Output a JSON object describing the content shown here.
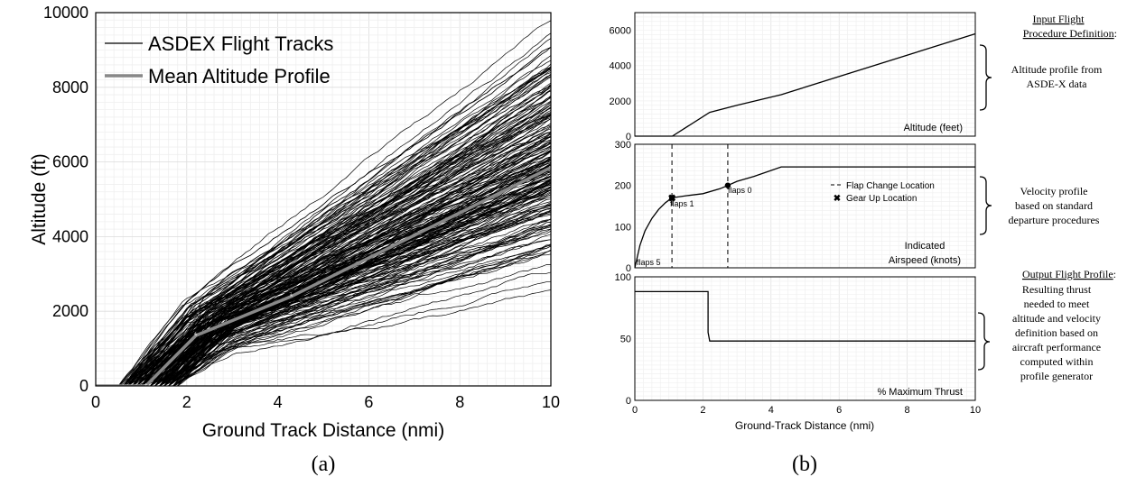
{
  "panel_labels": {
    "a": "(a)",
    "b": "(b)"
  },
  "chart_data": [
    {
      "type": "line",
      "xlabel": "Ground Track Distance (nmi)",
      "ylabel": "Altitude (ft)",
      "xlim": [
        0,
        10
      ],
      "ylim": [
        0,
        10000
      ],
      "xticks": [
        "0",
        "2",
        "4",
        "6",
        "8",
        "10"
      ],
      "yticks": [
        "0",
        "2000",
        "4000",
        "6000",
        "8000",
        "10000"
      ],
      "grid": true,
      "legend_position": "top-left",
      "series": [
        {
          "name": "ASDEX Flight Tracks",
          "color": "#000000",
          "description_values": {
            "track_count_drawn": 220,
            "spread_at_10nmi": [
              3000,
              10000
            ]
          }
        },
        {
          "name": "Mean Altitude Profile",
          "color": "#888888",
          "x": [
            0,
            1.1,
            2.2,
            4.3,
            10
          ],
          "y": [
            0,
            0,
            1350,
            2400,
            5850
          ]
        }
      ]
    },
    {
      "type": "line",
      "panel": "top",
      "label": "Altitude (feet)",
      "xlim": [
        0,
        10
      ],
      "ylim": [
        0,
        7000
      ],
      "yticks": [
        "0",
        "2000",
        "4000",
        "6000"
      ],
      "grid": true,
      "series": [
        {
          "x": [
            0,
            1.1,
            2.2,
            3.0,
            4.3,
            10
          ],
          "y": [
            0,
            0,
            1350,
            1750,
            2350,
            5800
          ]
        }
      ]
    },
    {
      "type": "line",
      "panel": "middle",
      "label_line1": "Indicated",
      "label_line2": "Airspeed (knots)",
      "xlim": [
        0,
        10
      ],
      "ylim": [
        0,
        300
      ],
      "yticks": [
        "0",
        "100",
        "200",
        "300"
      ],
      "grid": true,
      "series": [
        {
          "x": [
            0,
            0.15,
            0.3,
            0.5,
            0.7,
            0.9,
            1.09,
            1.5,
            2.0,
            2.5,
            2.73,
            3.0,
            3.5,
            4.3,
            10
          ],
          "y": [
            0,
            55,
            90,
            120,
            142,
            158,
            170,
            175,
            180,
            192,
            200,
            210,
            222,
            245,
            245
          ]
        }
      ],
      "flap_changes": [
        {
          "x": 1.09,
          "label": "flaps 1"
        },
        {
          "x": 2.73,
          "label": "flaps 0"
        }
      ],
      "start_label": "flaps 5",
      "gear_up": {
        "x": 1.09,
        "y": 170
      },
      "legend": {
        "flap": "Flap Change Location",
        "gear": "Gear Up Location"
      }
    },
    {
      "type": "line",
      "panel": "bottom",
      "label": "% Maximum Thrust",
      "xlim": [
        0,
        10
      ],
      "ylim": [
        0,
        100
      ],
      "yticks": [
        "0",
        "50",
        "100"
      ],
      "xticks": [
        "0",
        "2",
        "4",
        "6",
        "8",
        "10"
      ],
      "xlabel": "Ground-Track Distance (nmi)",
      "grid": true,
      "series": [
        {
          "x": [
            0,
            2.15,
            2.15,
            2.2,
            10
          ],
          "y": [
            88,
            88,
            55,
            48,
            48
          ]
        }
      ]
    }
  ],
  "annotations": {
    "input_title_line1": "Input Flight",
    "input_title_line2": "Procedure Definition",
    "input_title_colon": ":",
    "alt_note": [
      "Altitude profile from",
      "ASDE-X data"
    ],
    "vel_note": [
      "Velocity profile",
      "based on standard",
      "departure procedures"
    ],
    "output_title": "Output Flight Profile",
    "output_colon": ":",
    "thrust_note": [
      "Resulting thrust",
      "needed to meet",
      "altitude and velocity",
      "definition based on",
      "aircraft performance",
      "computed within",
      "profile generator"
    ]
  }
}
